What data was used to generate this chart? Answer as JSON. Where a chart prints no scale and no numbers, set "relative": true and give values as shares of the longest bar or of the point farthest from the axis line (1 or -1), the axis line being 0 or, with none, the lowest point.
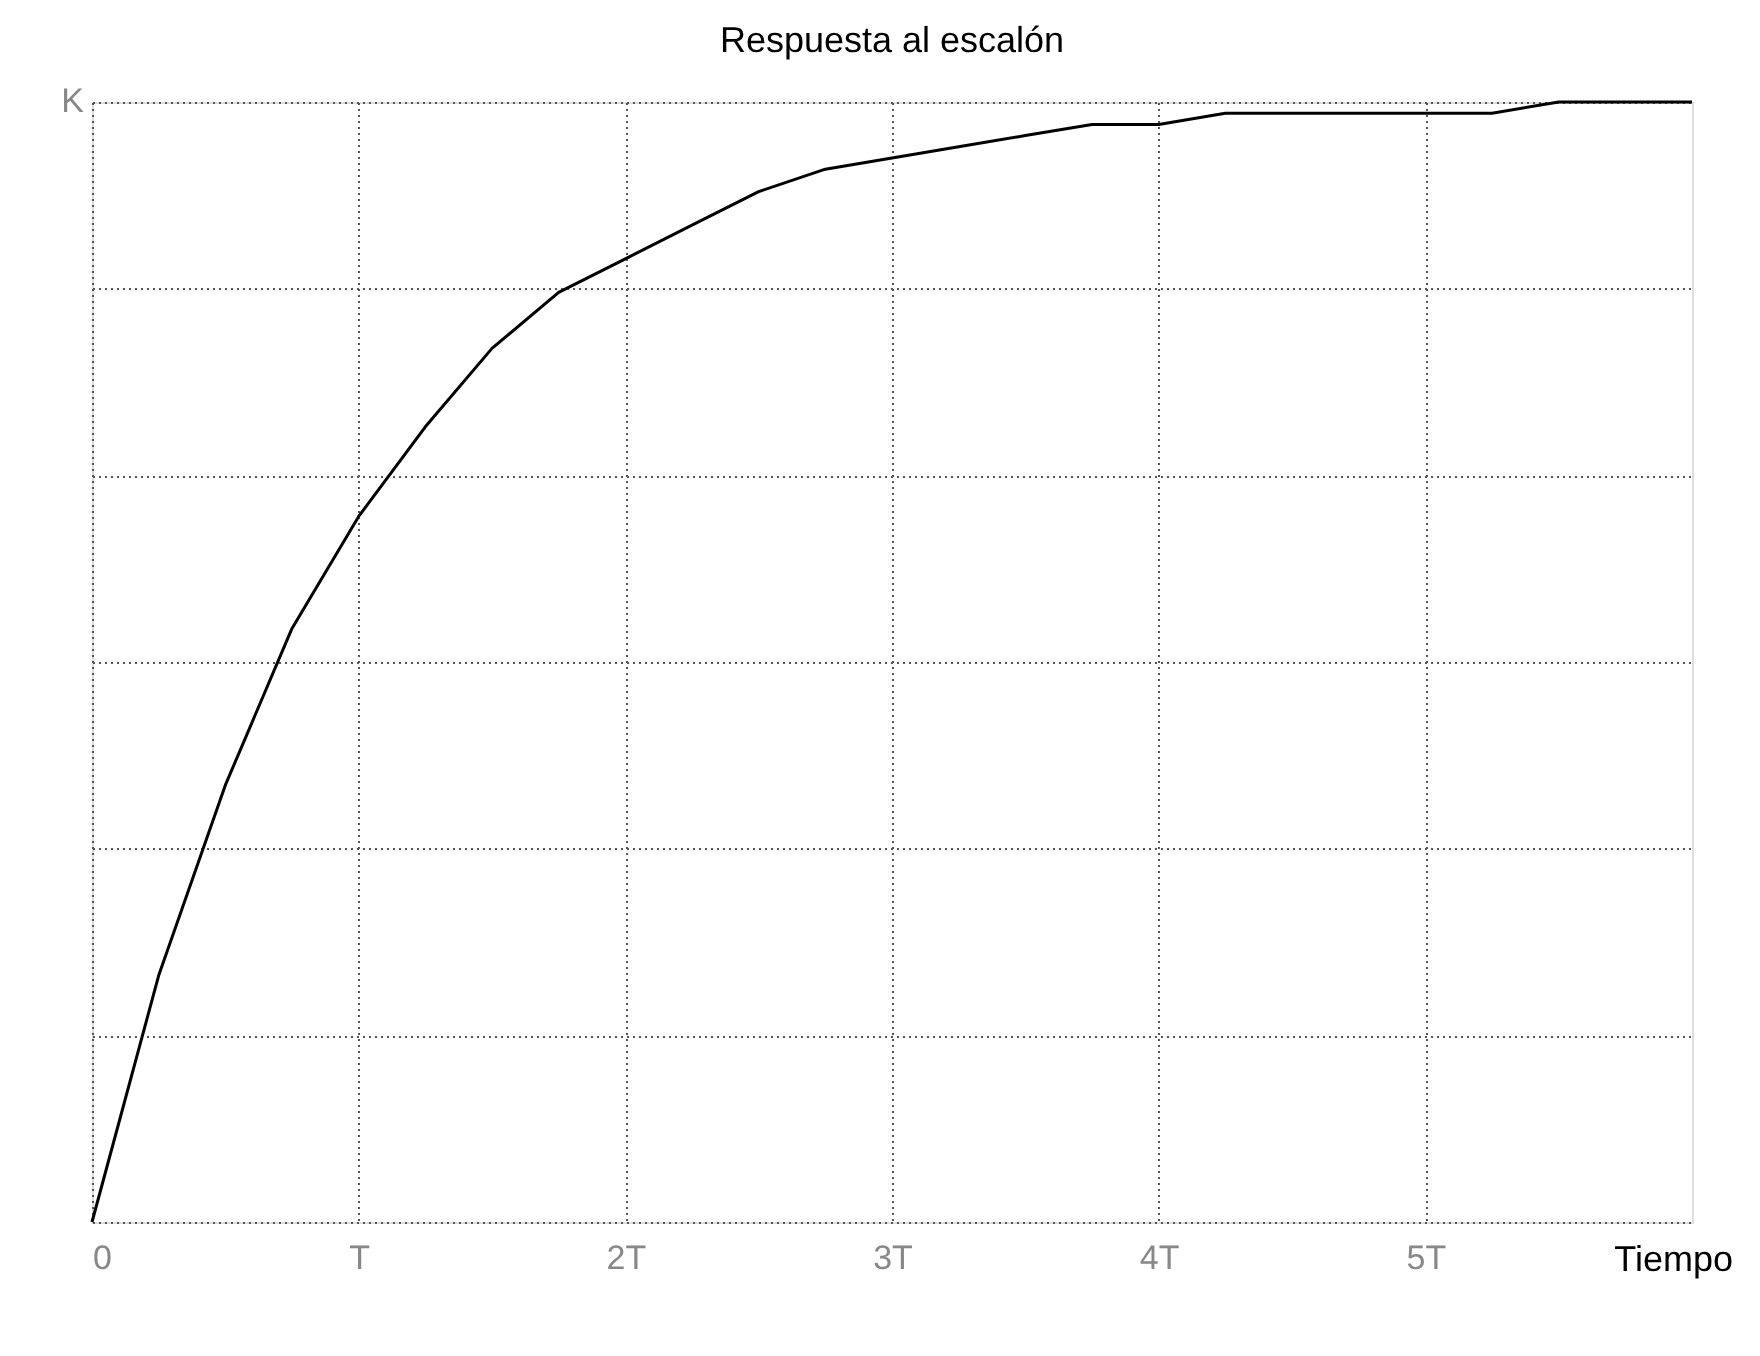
{
  "chart_data": {
    "type": "line",
    "title": "Respuesta al escalón",
    "xlabel": "Tiempo",
    "relative": true,
    "annotations": [
      "K"
    ],
    "x": [
      0,
      0.25,
      0.5,
      0.75,
      1,
      1.25,
      1.5,
      1.75,
      2,
      2.25,
      2.5,
      2.75,
      3,
      3.25,
      3.5,
      3.75,
      4,
      4.25,
      4.5,
      4.75,
      5,
      5.25,
      5.5,
      5.75,
      6
    ],
    "series": [
      {
        "color": "#000000",
        "values": [
          0,
          0.22,
          0.39,
          0.53,
          0.63,
          0.71,
          0.78,
          0.83,
          0.86,
          0.89,
          0.92,
          0.94,
          0.95,
          0.96,
          0.97,
          0.98,
          0.98,
          0.99,
          0.99,
          0.99,
          0.99,
          0.99,
          1.0,
          1.0,
          1.0
        ]
      }
    ],
    "xlim": [
      0,
      6
    ],
    "xticks": [
      0,
      {
        "value": 1,
        "label": "T"
      },
      {
        "value": 2,
        "label": "2T"
      },
      {
        "value": 3,
        "label": "3T"
      },
      {
        "value": 4,
        "label": "4T"
      },
      {
        "value": 5,
        "label": "5T"
      }
    ],
    "grid": true,
    "marker": "none",
    "line_style": "solid"
  }
}
